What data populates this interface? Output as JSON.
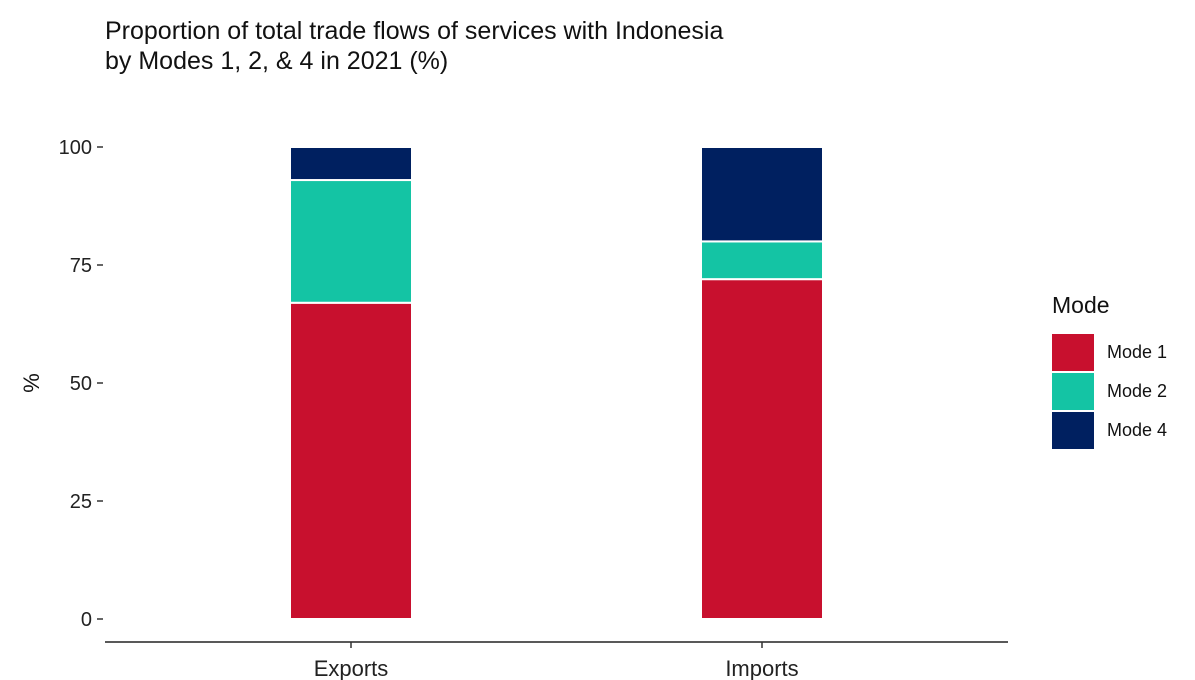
{
  "chart_data": {
    "type": "bar",
    "stacked": true,
    "title": "Proportion of total trade flows of services with Indonesia",
    "subtitle": "by Modes 1, 2, & 4 in 2021 (%)",
    "xlabel": "",
    "ylabel": "%",
    "categories": [
      "Exports",
      "Imports"
    ],
    "series": [
      {
        "name": "Mode 1",
        "values": [
          67,
          72
        ],
        "color": "#C8102E"
      },
      {
        "name": "Mode 2",
        "values": [
          26,
          8
        ],
        "color": "#14C4A4"
      },
      {
        "name": "Mode 4",
        "values": [
          7,
          20
        ],
        "color": "#002060"
      }
    ],
    "ylim": [
      0,
      100
    ],
    "yticks": [
      0,
      25,
      50,
      75,
      100
    ],
    "grid": false,
    "legend": {
      "title": "Mode",
      "position": "right"
    }
  }
}
